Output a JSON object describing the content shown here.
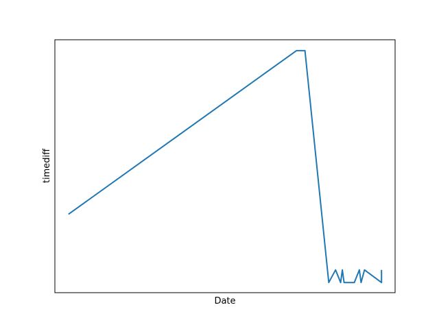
{
  "chart_data": {
    "type": "line",
    "title": "",
    "xlabel": "Date",
    "ylabel": "timediff",
    "grid": false,
    "legend": "none",
    "ticks_visible": false,
    "xlim": [
      0,
      1
    ],
    "ylim": [
      0,
      1
    ],
    "color": "#1f77b4",
    "series": [
      {
        "x": [
          0.04,
          0.71,
          0.735,
          0.805,
          0.825,
          0.84,
          0.845,
          0.85,
          0.88,
          0.895,
          0.9,
          0.91,
          0.96,
          0.96
        ],
        "y": [
          0.31,
          0.957,
          0.957,
          0.04,
          0.09,
          0.04,
          0.09,
          0.04,
          0.04,
          0.09,
          0.04,
          0.09,
          0.04,
          0.09
        ]
      }
    ]
  }
}
